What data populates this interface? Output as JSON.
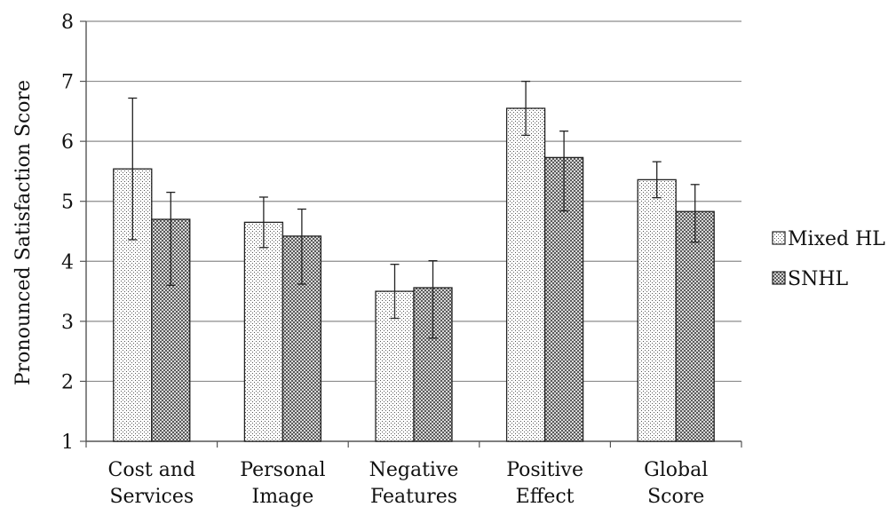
{
  "chart_data": {
    "type": "bar",
    "ylabel": "Pronounced Satisfaction Score",
    "ylim": [
      1,
      8
    ],
    "yticks": [
      "1",
      "2",
      "3",
      "4",
      "5",
      "6",
      "7",
      "8"
    ],
    "grid": true,
    "legend_position": "right",
    "categories": [
      [
        "Cost and",
        "Services"
      ],
      [
        "Personal",
        "Image"
      ],
      [
        "Negative",
        "Features"
      ],
      [
        "Positive",
        "Effect"
      ],
      [
        "Global",
        "Score"
      ]
    ],
    "series": [
      {
        "name": "Mixed HL",
        "pattern": "dots",
        "values": [
          5.54,
          4.65,
          3.5,
          6.55,
          5.36
        ],
        "error_low": [
          4.36,
          4.23,
          3.05,
          6.1,
          5.06
        ],
        "error_high": [
          6.72,
          5.07,
          3.95,
          7.0,
          5.66
        ]
      },
      {
        "name": "SNHL",
        "pattern": "checker",
        "values": [
          4.7,
          4.42,
          3.56,
          5.73,
          4.83
        ],
        "error_low": [
          3.6,
          3.62,
          2.72,
          4.84,
          4.32
        ],
        "error_high": [
          5.15,
          4.87,
          4.01,
          6.17,
          5.28
        ]
      }
    ],
    "colors": {
      "grid": "#8c8c8c",
      "bar_outline": "#222222",
      "axis": "#555555"
    }
  }
}
